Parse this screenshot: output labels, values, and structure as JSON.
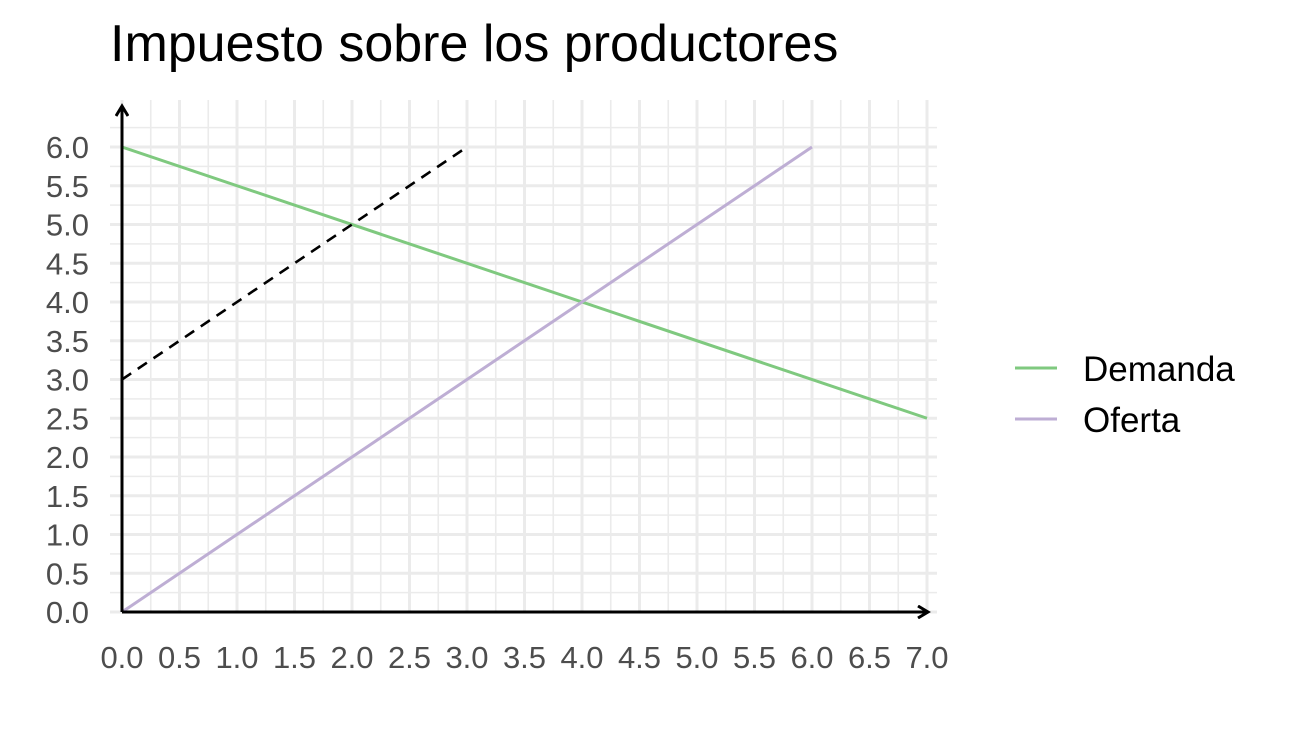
{
  "chart_data": {
    "type": "line",
    "title": "Impuesto sobre los productores",
    "xlabel": "",
    "ylabel": "",
    "xlim": [
      0,
      7
    ],
    "ylim": [
      0,
      6
    ],
    "xticks": [
      "0.0",
      "0.5",
      "1.0",
      "1.5",
      "2.0",
      "2.5",
      "3.0",
      "3.5",
      "4.0",
      "4.5",
      "5.0",
      "5.5",
      "6.0",
      "6.5",
      "7.0"
    ],
    "yticks": [
      "0.0",
      "0.5",
      "1.0",
      "1.5",
      "2.0",
      "2.5",
      "3.0",
      "3.5",
      "4.0",
      "4.5",
      "5.0",
      "5.5",
      "6.0"
    ],
    "grid": true,
    "legend_position": "right",
    "series": [
      {
        "name": "Demanda",
        "color": "#7fc97f",
        "style": "solid",
        "x": [
          0,
          7
        ],
        "y": [
          6,
          2.5
        ]
      },
      {
        "name": "Oferta",
        "color": "#beaed4",
        "style": "solid",
        "x": [
          0,
          6
        ],
        "y": [
          0,
          6
        ]
      },
      {
        "color": "#000000",
        "style": "dashed",
        "x": [
          0,
          3
        ],
        "y": [
          3,
          6
        ]
      }
    ]
  }
}
